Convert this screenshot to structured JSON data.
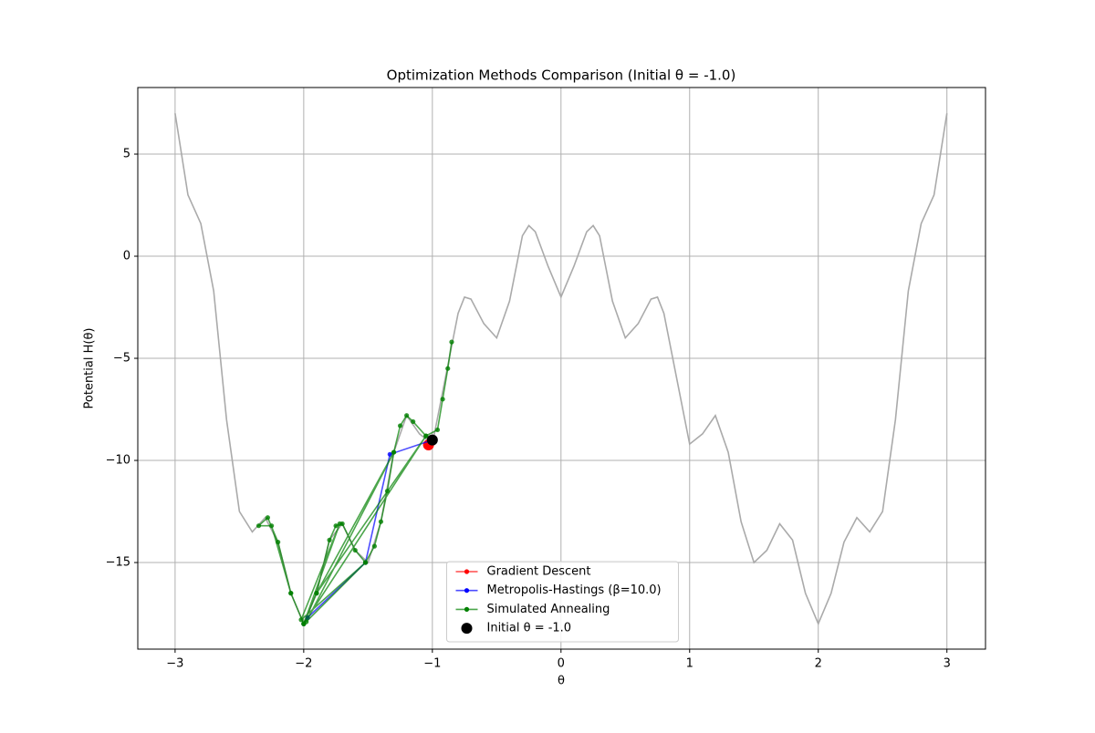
{
  "chart_data": {
    "type": "line",
    "title": "Optimization Methods Comparison (Initial θ = -1.0)",
    "x_label": "θ",
    "y_label": "Potential H(θ)",
    "xlim": [
      -3.29,
      3.3
    ],
    "ylim": [
      -19.24,
      8.26
    ],
    "xticks": [
      {
        "value": -3,
        "label": "−3"
      },
      {
        "value": -2,
        "label": "−2"
      },
      {
        "value": -1,
        "label": "−1"
      },
      0,
      1,
      2,
      3
    ],
    "yticks": [
      {
        "value": -15,
        "label": "−15"
      },
      {
        "value": -10,
        "label": "−10"
      },
      {
        "value": -5,
        "label": "−5"
      },
      0,
      5
    ],
    "grid": true,
    "legend_position": "lower center",
    "curve": {
      "color": "#aaaaaa",
      "x": [
        -3.0,
        -2.9,
        -2.8,
        -2.7,
        -2.6,
        -2.5,
        -2.4,
        -2.3,
        -2.2,
        -2.1,
        -2.0,
        -1.9,
        -1.8,
        -1.7,
        -1.6,
        -1.5,
        -1.4,
        -1.3,
        -1.2,
        -1.1,
        -1.0,
        -0.9,
        -0.8,
        -0.75,
        -0.7,
        -0.6,
        -0.5,
        -0.4,
        -0.3,
        -0.25,
        -0.2,
        -0.1,
        0.0,
        0.1,
        0.2,
        0.25,
        0.3,
        0.4,
        0.5,
        0.6,
        0.7,
        0.75,
        0.8,
        0.9,
        1.0,
        1.1,
        1.2,
        1.3,
        1.4,
        1.5,
        1.6,
        1.7,
        1.8,
        1.9,
        2.0,
        2.1,
        2.2,
        2.3,
        2.4,
        2.5,
        2.6,
        2.7,
        2.8,
        2.9,
        3.0
      ],
      "values": [
        7,
        3,
        1.6,
        -1.7,
        -8,
        -12.5,
        -13.5,
        -12.8,
        -14,
        -16.5,
        -18,
        -16.5,
        -13.9,
        -13.1,
        -14.4,
        -15,
        -13,
        -9.6,
        -7.8,
        -8.7,
        -9.2,
        -6,
        -2.8,
        -2,
        -2.1,
        -3.3,
        -4,
        -2.2,
        1.0,
        1.5,
        1.2,
        -0.5,
        -2,
        -0.5,
        1.2,
        1.5,
        1.0,
        -2.2,
        -4,
        -3.3,
        -2.1,
        -2,
        -2.8,
        -6,
        -9.2,
        -8.7,
        -7.8,
        -9.6,
        -13,
        -15,
        -14.4,
        -13.1,
        -13.9,
        -16.5,
        -18,
        -16.5,
        -14,
        -12.8,
        -13.5,
        -12.5,
        -8,
        -1.7,
        1.6,
        3,
        7
      ]
    },
    "series": [
      {
        "name": "Gradient Descent",
        "color": "#ff0000",
        "x": [
          -1.0,
          -1.02,
          -1.03
        ],
        "values": [
          -9.0,
          -9.15,
          -9.24
        ]
      },
      {
        "name": "Metropolis-Hastings (β=10.0)",
        "color": "#0000ff",
        "x": [
          -1.0,
          -1.33,
          -1.52,
          -1.97,
          -2.0
        ],
        "values": [
          -9.0,
          -9.7,
          -15.0,
          -17.7,
          -18.0
        ]
      },
      {
        "name": "Simulated Annealing",
        "color": "#008000",
        "x": [
          -0.85,
          -0.88,
          -0.92,
          -0.96,
          -1.05,
          -1.15,
          -1.2,
          -1.25,
          -1.3,
          -1.35,
          -1.4,
          -1.45,
          -1.52,
          -1.6,
          -1.7,
          -1.75,
          -1.8,
          -1.9,
          -2.0,
          -2.1,
          -2.2,
          -2.28,
          -2.35,
          -2.25,
          -2.1,
          -2.0,
          -1.72,
          -2.02,
          -1.52,
          -1.98,
          -1.3,
          -1.9,
          -1.05,
          -2.0
        ],
        "values": [
          -4.2,
          -5.5,
          -7.0,
          -8.5,
          -8.8,
          -8.1,
          -7.8,
          -8.3,
          -9.6,
          -11.5,
          -13,
          -14.2,
          -15,
          -14.4,
          -13.1,
          -13.2,
          -13.9,
          -16.5,
          -18,
          -16.5,
          -14,
          -12.8,
          -13.2,
          -13.2,
          -16.5,
          -18,
          -13.1,
          -17.8,
          -15,
          -17.9,
          -9.6,
          -16.5,
          -8.8,
          -18
        ]
      },
      {
        "name": "Initial θ = -1.0",
        "color": "#000000",
        "x": [
          -1.0
        ],
        "values": [
          -9.0
        ]
      }
    ]
  }
}
